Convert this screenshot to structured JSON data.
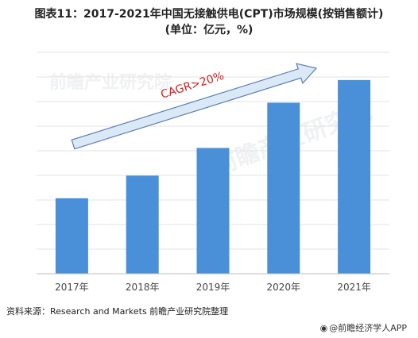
{
  "title_line1": "图表11：2017-2021年中国无接触供电(CPT)市场规模(按销售额计)",
  "title_line2": "(单位：亿元，%)",
  "source": "资料来源：Research and Markets 前瞻产业研究院整理",
  "brand": "@前瞻经济学人APP",
  "watermark": "前瞻产业研究院",
  "annotation": "CAGR>20%",
  "colors": {
    "bar": "#4a90d9",
    "arrow_fill": "#dbe8f6",
    "arrow_stroke": "#5b7fb5",
    "annotation": "#cc2222"
  },
  "chart_data": {
    "type": "bar",
    "categories": [
      "2017年",
      "2018年",
      "2019年",
      "2020年",
      "2021年"
    ],
    "values": [
      30,
      39,
      50,
      68,
      77
    ],
    "ylim": [
      0,
      88
    ],
    "grid": true,
    "annotation": "CAGR>20%"
  }
}
